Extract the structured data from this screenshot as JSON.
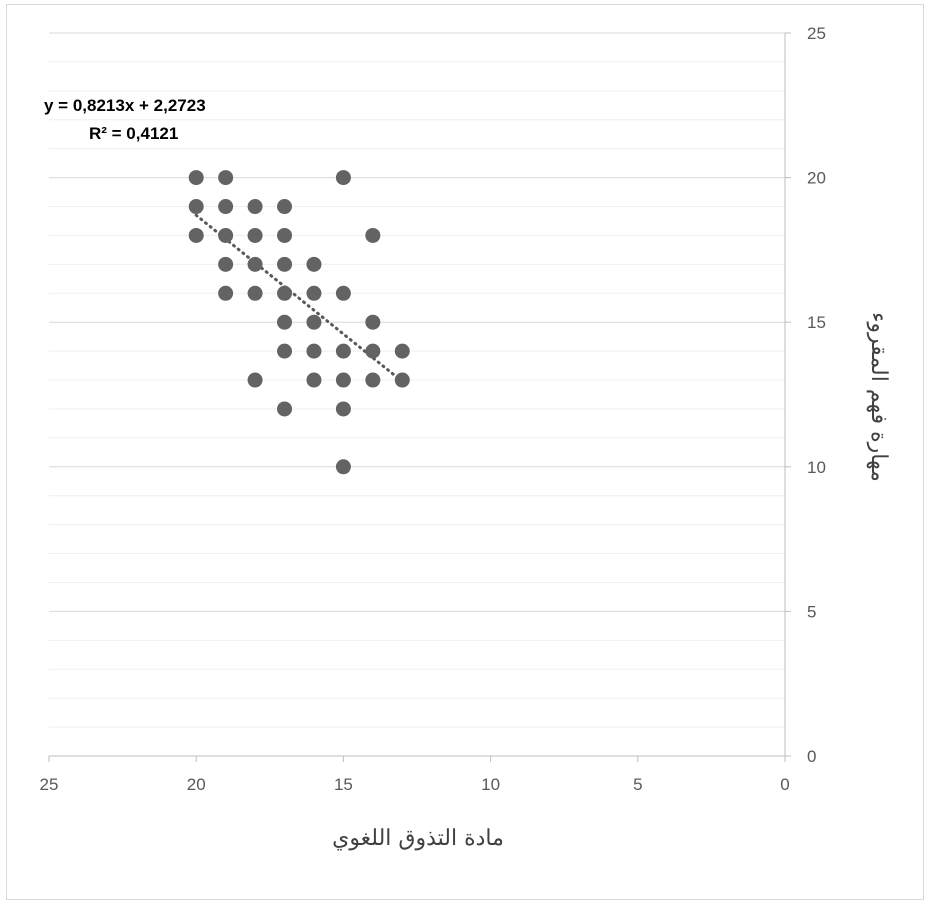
{
  "chart_data": {
    "type": "scatter",
    "title": "",
    "xlabel": "مادة التذوق اللغوي",
    "ylabel": "مهارة فهم المقروء",
    "xlim": [
      0,
      25
    ],
    "ylim": [
      0,
      25
    ],
    "x_reversed": true,
    "y_axis_position": "right",
    "x_ticks": [
      "0",
      "5",
      "10",
      "15",
      "20",
      "25"
    ],
    "y_ticks": [
      "0",
      "5",
      "10",
      "15",
      "20",
      "25"
    ],
    "x_tick_values": [
      0,
      5,
      10,
      15,
      20,
      25
    ],
    "y_tick_values": [
      0,
      5,
      10,
      15,
      20,
      25
    ],
    "major_grid_step": 5,
    "minor_grid_step": 1,
    "grid": true,
    "marker_color": "#636363",
    "trendline_color": "#595959",
    "trendline": {
      "type": "linear",
      "slope": 0.8213,
      "intercept": 2.2723,
      "x_range": [
        13,
        20
      ],
      "equation_label": "y = 0,8213x + 2,2723",
      "r2_label": "R² = 0,4121",
      "position": "top-left"
    },
    "points": [
      [
        20,
        20
      ],
      [
        19,
        20
      ],
      [
        15,
        20
      ],
      [
        20,
        19
      ],
      [
        19,
        19
      ],
      [
        18,
        19
      ],
      [
        17,
        19
      ],
      [
        20,
        18
      ],
      [
        19,
        18
      ],
      [
        18,
        18
      ],
      [
        17,
        18
      ],
      [
        14,
        18
      ],
      [
        19,
        17
      ],
      [
        18,
        17
      ],
      [
        17,
        17
      ],
      [
        16,
        17
      ],
      [
        19,
        16
      ],
      [
        18,
        16
      ],
      [
        17,
        16
      ],
      [
        16,
        16
      ],
      [
        15,
        16
      ],
      [
        17,
        15
      ],
      [
        16,
        15
      ],
      [
        14,
        15
      ],
      [
        17,
        14
      ],
      [
        16,
        14
      ],
      [
        15,
        14
      ],
      [
        14,
        14
      ],
      [
        13,
        14
      ],
      [
        18,
        13
      ],
      [
        16,
        13
      ],
      [
        15,
        13
      ],
      [
        14,
        13
      ],
      [
        13,
        13
      ],
      [
        17,
        12
      ],
      [
        15,
        12
      ],
      [
        15,
        10
      ]
    ]
  }
}
